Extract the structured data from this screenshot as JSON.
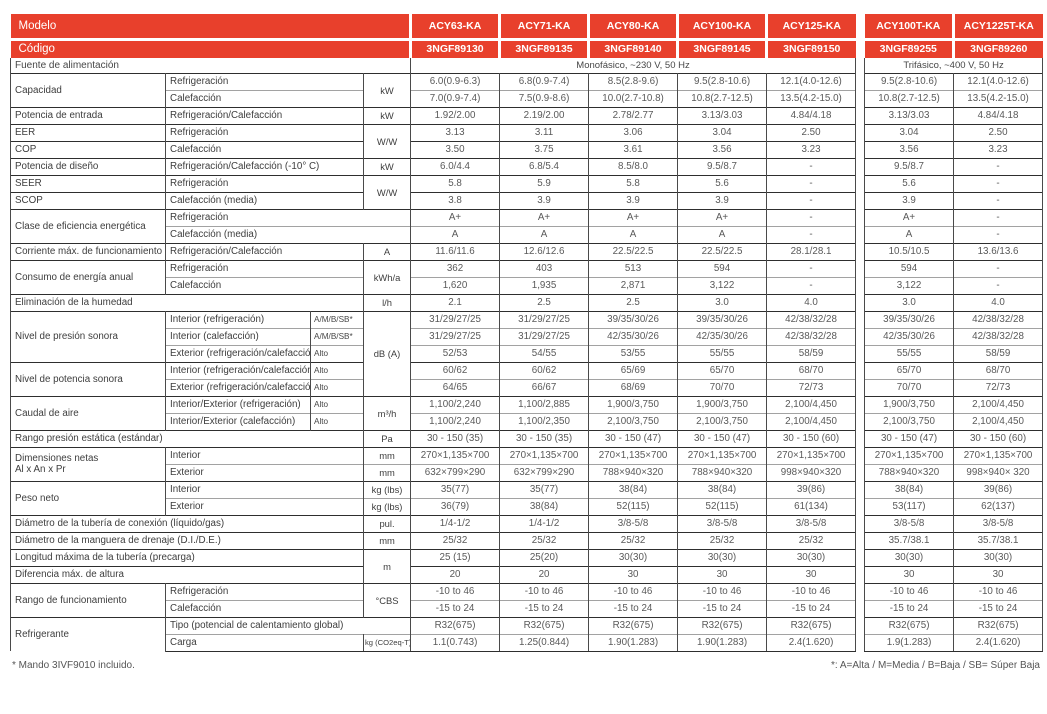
{
  "colors": {
    "accent_red": "#E8402C",
    "border_dark": "#2e2e2e",
    "border_light": "#a2a2a2"
  },
  "header": {
    "model_label": "Modelo",
    "code_label": "Código",
    "power_label": "Fuente de alimentación",
    "mono": {
      "models": [
        "ACY63-KA",
        "ACY71-KA",
        "ACY80-KA",
        "ACY100-KA",
        "ACY125-KA"
      ],
      "codes": [
        "3NGF89130",
        "3NGF89135",
        "3NGF89140",
        "3NGF89145",
        "3NGF89150"
      ],
      "power": "Monofásico, ~230 V, 50 Hz"
    },
    "tri": {
      "models": [
        "ACY100T-KA",
        "ACY1225T-KA"
      ],
      "codes": [
        "3NGF89255",
        "3NGF89260"
      ],
      "power": "Trifásico, ~400 V, 50 Hz"
    }
  },
  "specs": [
    {
      "strong": true,
      "cells": [
        {
          "k": "group",
          "t": "Capacidad",
          "rs": 2
        },
        {
          "k": "sub",
          "t": "Refrigeración",
          "cs": 2
        },
        {
          "k": "unit",
          "t": "kW",
          "rs": 2
        }
      ],
      "values": [
        "6.0(0.9-6.3)",
        "6.8(0.9-7.4)",
        "8.5(2.8-9.6)",
        "9.5(2.8-10.6)",
        "12.1(4.0-12.6)",
        "9.5(2.8-10.6)",
        "12.1(4.0-12.6)"
      ]
    },
    {
      "strong": false,
      "cells": [
        {
          "k": "sub",
          "t": "Calefacción",
          "cs": 2
        }
      ],
      "values": [
        "7.0(0.9-7.4)",
        "7.5(0.9-8.6)",
        "10.0(2.7-10.8)",
        "10.8(2.7-12.5)",
        "13.5(4.2-15.0)",
        "10.8(2.7-12.5)",
        "13.5(4.2-15.0)"
      ]
    },
    {
      "strong": true,
      "cells": [
        {
          "k": "group",
          "t": "Potencia de entrada"
        },
        {
          "k": "sub",
          "t": "Refrigeración/Calefacción",
          "cs": 2
        },
        {
          "k": "unit",
          "t": "kW"
        }
      ],
      "values": [
        "1.92/2.00",
        "2.19/2.00",
        "2.78/2.77",
        "3.13/3.03",
        "4.84/4.18",
        "3.13/3.03",
        "4.84/4.18"
      ]
    },
    {
      "strong": true,
      "cells": [
        {
          "k": "group",
          "t": "EER"
        },
        {
          "k": "sub",
          "t": "Refrigeración",
          "cs": 2
        },
        {
          "k": "unit",
          "t": "W/W",
          "rs": 2
        }
      ],
      "values": [
        "3.13",
        "3.11",
        "3.06",
        "3.04",
        "2.50",
        "3.04",
        "2.50"
      ]
    },
    {
      "strong": true,
      "cells": [
        {
          "k": "group",
          "t": "COP"
        },
        {
          "k": "sub",
          "t": "Calefacción",
          "cs": 2
        }
      ],
      "values": [
        "3.50",
        "3.75",
        "3.61",
        "3.56",
        "3.23",
        "3.56",
        "3.23"
      ]
    },
    {
      "strong": true,
      "cells": [
        {
          "k": "group",
          "t": "Potencia de diseño"
        },
        {
          "k": "sub",
          "t": "Refrigeración/Calefacción (-10° C)",
          "cs": 2
        },
        {
          "k": "unit",
          "t": "kW"
        }
      ],
      "values": [
        "6.0/4.4",
        "6.8/5.4",
        "8.5/8.0",
        "9.5/8.7",
        "-",
        "9.5/8.7",
        "-"
      ]
    },
    {
      "strong": true,
      "cells": [
        {
          "k": "group",
          "t": "SEER"
        },
        {
          "k": "sub",
          "t": "Refrigeración",
          "cs": 2
        },
        {
          "k": "unit",
          "t": "W/W",
          "rs": 2
        }
      ],
      "values": [
        "5.8",
        "5.9",
        "5.8",
        "5.6",
        "-",
        "5.6",
        "-"
      ]
    },
    {
      "strong": true,
      "cells": [
        {
          "k": "group",
          "t": "SCOP"
        },
        {
          "k": "sub",
          "t": "Calefacción (media)",
          "cs": 2
        }
      ],
      "values": [
        "3.8",
        "3.9",
        "3.9",
        "3.9",
        "-",
        "3.9",
        "-"
      ]
    },
    {
      "strong": true,
      "cells": [
        {
          "k": "group",
          "t": "Clase de eficiencia energética",
          "rs": 2
        },
        {
          "k": "sub",
          "t": "Refrigeración",
          "cs": 3
        }
      ],
      "values": [
        "A+",
        "A+",
        "A+",
        "A+",
        "-",
        "A+",
        "-"
      ]
    },
    {
      "strong": false,
      "cells": [
        {
          "k": "sub",
          "t": "Calefacción (media)",
          "cs": 3
        }
      ],
      "values": [
        "A",
        "A",
        "A",
        "A",
        "-",
        "A",
        "-"
      ]
    },
    {
      "strong": true,
      "cells": [
        {
          "k": "group",
          "t": "Corriente máx. de funcionamiento"
        },
        {
          "k": "sub",
          "t": "Refrigeración/Calefacción",
          "cs": 2
        },
        {
          "k": "unit",
          "t": "A"
        }
      ],
      "values": [
        "11.6/11.6",
        "12.6/12.6",
        "22.5/22.5",
        "22.5/22.5",
        "28.1/28.1",
        "10.5/10.5",
        "13.6/13.6"
      ]
    },
    {
      "strong": true,
      "cells": [
        {
          "k": "group",
          "t": "Consumo de energía anual",
          "rs": 2
        },
        {
          "k": "sub",
          "t": "Refrigeración",
          "cs": 2
        },
        {
          "k": "unit",
          "t": "kWh/a",
          "rs": 2
        }
      ],
      "values": [
        "362",
        "403",
        "513",
        "594",
        "-",
        "594",
        "-"
      ]
    },
    {
      "strong": false,
      "cells": [
        {
          "k": "sub",
          "t": "Calefacción",
          "cs": 2
        }
      ],
      "values": [
        "1,620",
        "1,935",
        "2,871",
        "3,122",
        "-",
        "3,122",
        "-"
      ]
    },
    {
      "strong": true,
      "cells": [
        {
          "k": "group",
          "t": "Eliminación de la humedad",
          "cs": 3
        },
        {
          "k": "unit",
          "t": "l/h"
        }
      ],
      "values": [
        "2.1",
        "2.5",
        "2.5",
        "3.0",
        "4.0",
        "3.0",
        "4.0"
      ]
    },
    {
      "strong": true,
      "cells": [
        {
          "k": "group",
          "t": "Nivel de presión sonora",
          "rs": 3
        },
        {
          "k": "sub",
          "t": "Interior (refrigeración)"
        },
        {
          "k": "qual",
          "t": "A/M/B/SB*"
        },
        {
          "k": "unit",
          "t": "dB (A)",
          "rs": 5
        }
      ],
      "values": [
        "31/29/27/25",
        "31/29/27/25",
        "39/35/30/26",
        "39/35/30/26",
        "42/38/32/28",
        "39/35/30/26",
        "42/38/32/28"
      ]
    },
    {
      "strong": false,
      "cells": [
        {
          "k": "sub",
          "t": "Interior (calefacción)"
        },
        {
          "k": "qual",
          "t": "A/M/B/SB*"
        }
      ],
      "values": [
        "31/29/27/25",
        "31/29/27/25",
        "42/35/30/26",
        "42/35/30/26",
        "42/38/32/28",
        "42/35/30/26",
        "42/38/32/28"
      ]
    },
    {
      "strong": false,
      "cells": [
        {
          "k": "sub",
          "t": "Exterior (refrigeración/calefacción)"
        },
        {
          "k": "qual",
          "t": "Alto"
        }
      ],
      "values": [
        "52/53",
        "54/55",
        "53/55",
        "55/55",
        "58/59",
        "55/55",
        "58/59"
      ]
    },
    {
      "strong": true,
      "cells": [
        {
          "k": "group",
          "t": "Nivel de potencia sonora",
          "rs": 2
        },
        {
          "k": "sub",
          "t": "Interior (refrigeración/calefacción)"
        },
        {
          "k": "qual",
          "t": "Alto"
        }
      ],
      "values": [
        "60/62",
        "60/62",
        "65/69",
        "65/70",
        "68/70",
        "65/70",
        "68/70"
      ]
    },
    {
      "strong": false,
      "cells": [
        {
          "k": "sub",
          "t": "Exterior (refrigeración/calefacción)"
        },
        {
          "k": "qual",
          "t": "Alto"
        }
      ],
      "values": [
        "64/65",
        "66/67",
        "68/69",
        "70/70",
        "72/73",
        "70/70",
        "72/73"
      ]
    },
    {
      "strong": true,
      "cells": [
        {
          "k": "group",
          "t": "Caudal de aire",
          "rs": 2
        },
        {
          "k": "sub",
          "t": "Interior/Exterior (refrigeración)"
        },
        {
          "k": "qual",
          "t": "Alto"
        },
        {
          "k": "unit",
          "t": "m³/h",
          "rs": 2
        }
      ],
      "values": [
        "1,100/2,240",
        "1,100/2,885",
        "1,900/3,750",
        "1,900/3,750",
        "2,100/4,450",
        "1,900/3,750",
        "2,100/4,450"
      ]
    },
    {
      "strong": false,
      "cells": [
        {
          "k": "sub",
          "t": "Interior/Exterior (calefacción)"
        },
        {
          "k": "qual",
          "t": "Alto"
        }
      ],
      "values": [
        "1,100/2,240",
        "1,100/2,350",
        "2,100/3,750",
        "2,100/3,750",
        "2,100/4,450",
        "2,100/3,750",
        "2,100/4,450"
      ]
    },
    {
      "strong": true,
      "cells": [
        {
          "k": "group",
          "t": "Rango presión estática (estándar)",
          "cs": 3
        },
        {
          "k": "unit",
          "t": "Pa"
        }
      ],
      "values": [
        "30 - 150 (35)",
        "30 - 150 (35)",
        "30 - 150 (47)",
        "30 - 150 (47)",
        "30 - 150 (60)",
        "30 - 150 (47)",
        "30 - 150 (60)"
      ]
    },
    {
      "strong": true,
      "cells": [
        {
          "k": "group",
          "t": "Dimensiones netas\nAl x An x Pr",
          "rs": 2
        },
        {
          "k": "sub",
          "t": "Interior",
          "cs": 2
        },
        {
          "k": "unit",
          "t": "mm"
        }
      ],
      "values": [
        "270×1,135×700",
        "270×1,135×700",
        "270×1,135×700",
        "270×1,135×700",
        "270×1,135×700",
        "270×1,135×700",
        "270×1,135×700"
      ]
    },
    {
      "strong": false,
      "cells": [
        {
          "k": "sub",
          "t": "Exterior",
          "cs": 2
        },
        {
          "k": "unit",
          "t": "mm"
        }
      ],
      "values": [
        "632×799×290",
        "632×799×290",
        "788×940×320",
        "788×940×320",
        "998×940×320",
        "788×940×320",
        "998×940× 320"
      ]
    },
    {
      "strong": true,
      "cells": [
        {
          "k": "group",
          "t": "Peso neto",
          "rs": 2
        },
        {
          "k": "sub",
          "t": "Interior",
          "cs": 2
        },
        {
          "k": "unit",
          "t": "kg (lbs)"
        }
      ],
      "values": [
        "35(77)",
        "35(77)",
        "38(84)",
        "38(84)",
        "39(86)",
        "38(84)",
        "39(86)"
      ]
    },
    {
      "strong": false,
      "cells": [
        {
          "k": "sub",
          "t": "Exterior",
          "cs": 2
        },
        {
          "k": "unit",
          "t": "kg (lbs)"
        }
      ],
      "values": [
        "36(79)",
        "38(84)",
        "52(115)",
        "52(115)",
        "61(134)",
        "53(117)",
        "62(137)"
      ]
    },
    {
      "strong": true,
      "cells": [
        {
          "k": "group",
          "t": "Diámetro de la tubería de conexión (líquido/gas)",
          "cs": 3
        },
        {
          "k": "unit",
          "t": "pul."
        }
      ],
      "values": [
        "1/4-1/2",
        "1/4-1/2",
        "3/8-5/8",
        "3/8-5/8",
        "3/8-5/8",
        "3/8-5/8",
        "3/8-5/8"
      ]
    },
    {
      "strong": true,
      "cells": [
        {
          "k": "group",
          "t": "Diámetro de la manguera de drenaje (D.I./D.E.)",
          "cs": 3
        },
        {
          "k": "unit",
          "t": "mm"
        }
      ],
      "values": [
        "25/32",
        "25/32",
        "25/32",
        "25/32",
        "25/32",
        "35.7/38.1",
        "35.7/38.1"
      ]
    },
    {
      "strong": true,
      "cells": [
        {
          "k": "group",
          "t": "Longitud máxima de la tubería (precarga)",
          "cs": 3
        },
        {
          "k": "unit",
          "t": "m",
          "rs": 2
        }
      ],
      "values": [
        "25 (15)",
        "25(20)",
        "30(30)",
        "30(30)",
        "30(30)",
        "30(30)",
        "30(30)"
      ]
    },
    {
      "strong": true,
      "cells": [
        {
          "k": "group",
          "t": "Diferencia máx. de altura",
          "cs": 3
        }
      ],
      "values": [
        "20",
        "20",
        "30",
        "30",
        "30",
        "30",
        "30"
      ]
    },
    {
      "strong": true,
      "cells": [
        {
          "k": "group",
          "t": "Rango de funcionamiento",
          "rs": 2
        },
        {
          "k": "sub",
          "t": "Refrigeración",
          "cs": 2
        },
        {
          "k": "unit",
          "t": "°CBS",
          "rs": 2
        }
      ],
      "values": [
        "-10 to 46",
        "-10 to 46",
        "-10 to 46",
        "-10 to 46",
        "-10 to 46",
        "-10 to 46",
        "-10 to 46"
      ]
    },
    {
      "strong": false,
      "cells": [
        {
          "k": "sub",
          "t": "Calefacción",
          "cs": 2
        }
      ],
      "values": [
        "-15 to 24",
        "-15 to 24",
        "-15 to 24",
        "-15 to 24",
        "-15 to 24",
        "-15 to 24",
        "-15 to 24"
      ]
    },
    {
      "strong": true,
      "cells": [
        {
          "k": "group",
          "t": "Refrigerante",
          "rs": 2
        },
        {
          "k": "sub",
          "t": "Tipo (potencial de calentamiento global)",
          "cs": 3
        }
      ],
      "values": [
        "R32(675)",
        "R32(675)",
        "R32(675)",
        "R32(675)",
        "R32(675)",
        "R32(675)",
        "R32(675)"
      ]
    },
    {
      "strong": false,
      "cells": [
        {
          "k": "sub",
          "t": "Carga",
          "cs": 2
        },
        {
          "k": "unit",
          "t": "kg (CO2eq-T)",
          "sm": true
        }
      ],
      "values": [
        "1.1(0.743)",
        "1.25(0.844)",
        "1.90(1.283)",
        "1.90(1.283)",
        "2.4(1.620)",
        "1.9(1.283)",
        "2.4(1.620)"
      ]
    }
  ],
  "footnotes": {
    "left": "* Mando 3IVF9010 incluido.",
    "right": "*: A=Alta / M=Media / B=Baja / SB= Súper Baja"
  }
}
